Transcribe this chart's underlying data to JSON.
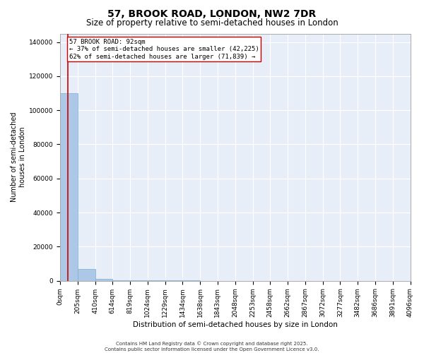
{
  "title": "57, BROOK ROAD, LONDON, NW2 7DR",
  "subtitle": "Size of property relative to semi-detached houses in London",
  "xlabel": "Distribution of semi-detached houses by size in London",
  "ylabel": "Number of semi-detached\nhouses in London",
  "property_size": 92,
  "annotation_text_line1": "57 BROOK ROAD: 92sqm",
  "annotation_text_line2": "← 37% of semi-detached houses are smaller (42,225)",
  "annotation_text_line3": "62% of semi-detached houses are larger (71,839) →",
  "bar_color": "#adc8e6",
  "bar_edge_color": "#7aaed0",
  "vline_color": "#cc0000",
  "annotation_box_facecolor": "#ffffff",
  "annotation_box_edgecolor": "#cc0000",
  "background_color": "#e8eef8",
  "grid_color": "#ffffff",
  "fig_facecolor": "#ffffff",
  "footer_line1": "Contains HM Land Registry data © Crown copyright and database right 2025.",
  "footer_line2": "Contains public sector information licensed under the Open Government Licence v3.0.",
  "bin_labels": [
    "0sqm",
    "205sqm",
    "410sqm",
    "614sqm",
    "819sqm",
    "1024sqm",
    "1229sqm",
    "1434sqm",
    "1638sqm",
    "1843sqm",
    "2048sqm",
    "2253sqm",
    "2458sqm",
    "2662sqm",
    "2867sqm",
    "3072sqm",
    "3277sqm",
    "3482sqm",
    "3686sqm",
    "3891sqm",
    "4096sqm"
  ],
  "bin_edges": [
    0,
    205,
    410,
    614,
    819,
    1024,
    1229,
    1434,
    1638,
    1843,
    2048,
    2253,
    2458,
    2662,
    2867,
    3072,
    3277,
    3482,
    3686,
    3891,
    4096
  ],
  "bar_heights": [
    110000,
    7000,
    1200,
    400,
    200,
    100,
    80,
    60,
    40,
    30,
    20,
    15,
    12,
    10,
    8,
    6,
    5,
    4,
    3,
    2
  ],
  "ylim": [
    0,
    145000
  ],
  "yticks": [
    0,
    20000,
    40000,
    60000,
    80000,
    100000,
    120000,
    140000
  ],
  "title_fontsize": 10,
  "subtitle_fontsize": 8.5,
  "ylabel_fontsize": 7,
  "xlabel_fontsize": 7.5,
  "tick_fontsize": 6.5,
  "annotation_fontsize": 6.5,
  "footer_fontsize": 5
}
